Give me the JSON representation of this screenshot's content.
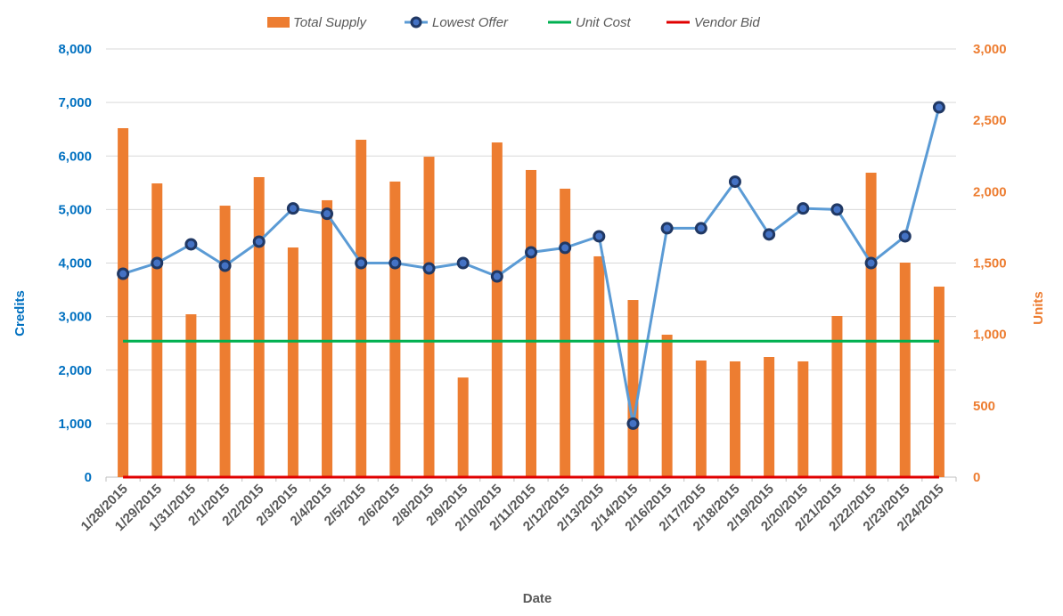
{
  "chart_data": {
    "type": "bar+line",
    "title": "",
    "xlabel": "Date",
    "ylabel_left": "Credits",
    "ylabel_right": "Units",
    "ylim_left": [
      0,
      8000
    ],
    "ylim_right": [
      0,
      3000
    ],
    "yticks_left": [
      "0",
      "1,000",
      "2,000",
      "3,000",
      "4,000",
      "5,000",
      "6,000",
      "7,000",
      "8,000"
    ],
    "yticks_right": [
      "0",
      "500",
      "1,000",
      "1,500",
      "2,000",
      "2,500",
      "3,000"
    ],
    "grid": true,
    "legend_position": "top",
    "categories": [
      "1/28/2015",
      "1/29/2015",
      "1/31/2015",
      "2/1/2015",
      "2/2/2015",
      "2/3/2015",
      "2/4/2015",
      "2/5/2015",
      "2/6/2015",
      "2/8/2015",
      "2/9/2015",
      "2/10/2015",
      "2/11/2015",
      "2/12/2015",
      "2/13/2015",
      "2/14/2015",
      "2/16/2015",
      "2/17/2015",
      "2/18/2015",
      "2/19/2015",
      "2/20/2015",
      "2/21/2015",
      "2/22/2015",
      "2/23/2015",
      "2/24/2015"
    ],
    "series": [
      {
        "name": "Total Supply",
        "type": "bar",
        "axis": "right",
        "color": "#ED7D31",
        "values": [
          2445,
          2058,
          1141,
          1902,
          2102,
          1609,
          1940,
          2364,
          2071,
          2245,
          698,
          2345,
          2152,
          2021,
          1547,
          1241,
          998,
          817,
          811,
          842,
          811,
          1129,
          2133,
          1503,
          1335
        ]
      },
      {
        "name": "Lowest Offer",
        "type": "line",
        "axis": "left",
        "color": "#5B9BD5",
        "marker": "#203864",
        "values": [
          3800,
          4000,
          4350,
          3950,
          4400,
          5020,
          4920,
          4000,
          4000,
          3900,
          4000,
          3750,
          4200,
          4285,
          4500,
          1000,
          4650,
          4650,
          5520,
          4535,
          5020,
          5000,
          4000,
          4500,
          6910
        ]
      },
      {
        "name": "Unit Cost",
        "type": "line",
        "axis": "left",
        "color": "#00B050",
        "values": [
          2540,
          2540,
          2540,
          2540,
          2540,
          2540,
          2540,
          2540,
          2540,
          2540,
          2540,
          2540,
          2540,
          2540,
          2540,
          2540,
          2540,
          2540,
          2540,
          2540,
          2540,
          2540,
          2540,
          2540,
          2540
        ]
      },
      {
        "name": "Vendor Bid",
        "type": "line",
        "axis": "left",
        "color": "#E00000",
        "values": [
          0,
          0,
          0,
          0,
          0,
          0,
          0,
          0,
          0,
          0,
          0,
          0,
          0,
          0,
          0,
          0,
          0,
          0,
          0,
          0,
          0,
          0,
          0,
          0,
          0
        ]
      }
    ]
  }
}
